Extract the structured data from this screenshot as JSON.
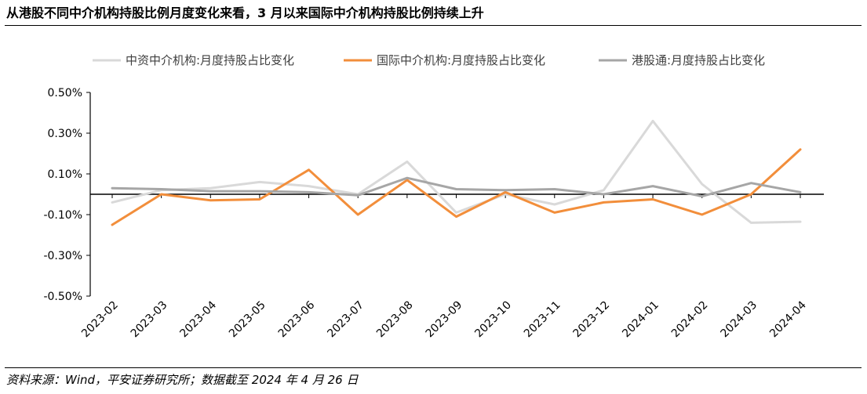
{
  "header": {
    "title": "从港股不同中介机构持股比例月度变化来看，3 月以来国际中介机构持股比例持续上升"
  },
  "footer": {
    "source": "资料来源：Wind，平安证券研究所；数据截至 2024 年 4 月 26 日"
  },
  "chart_data": {
    "type": "line",
    "title": "",
    "xlabel": "",
    "ylabel": "",
    "x": [
      "2023-02",
      "2023-03",
      "2023-04",
      "2023-05",
      "2023-06",
      "2023-07",
      "2023-08",
      "2023-09",
      "2023-10",
      "2023-11",
      "2023-12",
      "2024-01",
      "2024-02",
      "2024-03",
      "2024-04"
    ],
    "ylim": [
      -0.5,
      0.5
    ],
    "yticks": [
      -0.5,
      -0.3,
      -0.1,
      0.1,
      0.3,
      0.5
    ],
    "ytick_labels": [
      "-0.50%",
      "-0.30%",
      "-0.10%",
      "0.10%",
      "0.30%",
      "0.50%"
    ],
    "y_unit": "%",
    "grid": false,
    "legend_position": "top",
    "series": [
      {
        "name": "中资中介机构:月度持股占比变化",
        "color": "#d9d9d9",
        "values": [
          -0.04,
          0.02,
          0.03,
          0.06,
          0.04,
          0.0,
          0.16,
          -0.09,
          0.0,
          -0.05,
          0.02,
          0.36,
          0.05,
          -0.14,
          -0.135
        ]
      },
      {
        "name": "国际中介机构:月度持股占比变化",
        "color": "#f28e3b",
        "values": [
          -0.15,
          0.0,
          -0.03,
          -0.025,
          0.12,
          -0.1,
          0.07,
          -0.11,
          0.01,
          -0.09,
          -0.04,
          -0.025,
          -0.1,
          0.0,
          0.22
        ]
      },
      {
        "name": "港股通:月度持股占比变化",
        "color": "#a6a6a6",
        "values": [
          0.03,
          0.025,
          0.015,
          0.015,
          0.01,
          -0.005,
          0.08,
          0.025,
          0.02,
          0.025,
          0.0,
          0.04,
          -0.01,
          0.055,
          0.01
        ]
      }
    ]
  }
}
